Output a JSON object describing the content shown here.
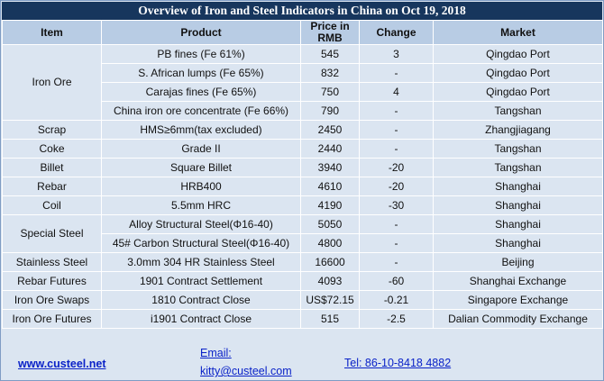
{
  "title": "Overview of Iron and Steel Indicators in China on Oct 19, 2018",
  "headers": [
    "Item",
    "Product",
    "Price in RMB",
    "Change",
    "Market"
  ],
  "rows": [
    {
      "item": "Iron Ore",
      "rowspan": 4,
      "product": "PB fines (Fe 61%)",
      "price": "545",
      "change": "3",
      "market": "Qingdao Port"
    },
    {
      "product": "S. African lumps (Fe 65%)",
      "price": "832",
      "change": "-",
      "market": "Qingdao Port"
    },
    {
      "product": "Carajas fines (Fe 65%)",
      "price": "750",
      "change": "4",
      "market": "Qingdao Port"
    },
    {
      "product": "China iron ore concentrate (Fe 66%)",
      "price": "790",
      "change": "-",
      "market": "Tangshan"
    },
    {
      "item": "Scrap",
      "rowspan": 1,
      "product": "HMS≥6mm(tax excluded)",
      "price": "2450",
      "change": "-",
      "market": "Zhangjiagang"
    },
    {
      "item": "Coke",
      "rowspan": 1,
      "product": "Grade II",
      "price": "2440",
      "change": "-",
      "market": "Tangshan"
    },
    {
      "item": "Billet",
      "rowspan": 1,
      "product": "Square Billet",
      "price": "3940",
      "change": "-20",
      "market": "Tangshan"
    },
    {
      "item": "Rebar",
      "rowspan": 1,
      "product": "HRB400",
      "price": "4610",
      "change": "-20",
      "market": "Shanghai"
    },
    {
      "item": "Coil",
      "rowspan": 1,
      "product": "5.5mm HRC",
      "price": "4190",
      "change": "-30",
      "market": "Shanghai"
    },
    {
      "item": "Special Steel",
      "rowspan": 2,
      "product": "Alloy Structural Steel(Φ16-40)",
      "price": "5050",
      "change": "-",
      "market": "Shanghai"
    },
    {
      "product": "45# Carbon Structural Steel(Φ16-40)",
      "price": "4800",
      "change": "-",
      "market": "Shanghai"
    },
    {
      "item": "Stainless Steel",
      "rowspan": 1,
      "product": "3.0mm 304 HR Stainless Steel",
      "price": "16600",
      "change": "-",
      "market": "Beijing"
    },
    {
      "item": "Rebar Futures",
      "rowspan": 1,
      "product": "1901 Contract Settlement",
      "price": "4093",
      "change": "-60",
      "market": "Shanghai Exchange"
    },
    {
      "item": "Iron Ore Swaps",
      "rowspan": 1,
      "product": "1810 Contract Close",
      "price": "US$72.15",
      "change": "-0.21",
      "market": "Singapore Exchange"
    },
    {
      "item": "Iron Ore Futures",
      "rowspan": 1,
      "product": "i1901 Contract Close",
      "price": "515",
      "change": "-2.5",
      "market": "Dalian Commodity Exchange"
    }
  ],
  "footer": {
    "website": "www.custeel.net",
    "email_label": "Email:",
    "email": "kitty@custeel.com",
    "tel": "Tel: 86-10-8418 4882"
  }
}
